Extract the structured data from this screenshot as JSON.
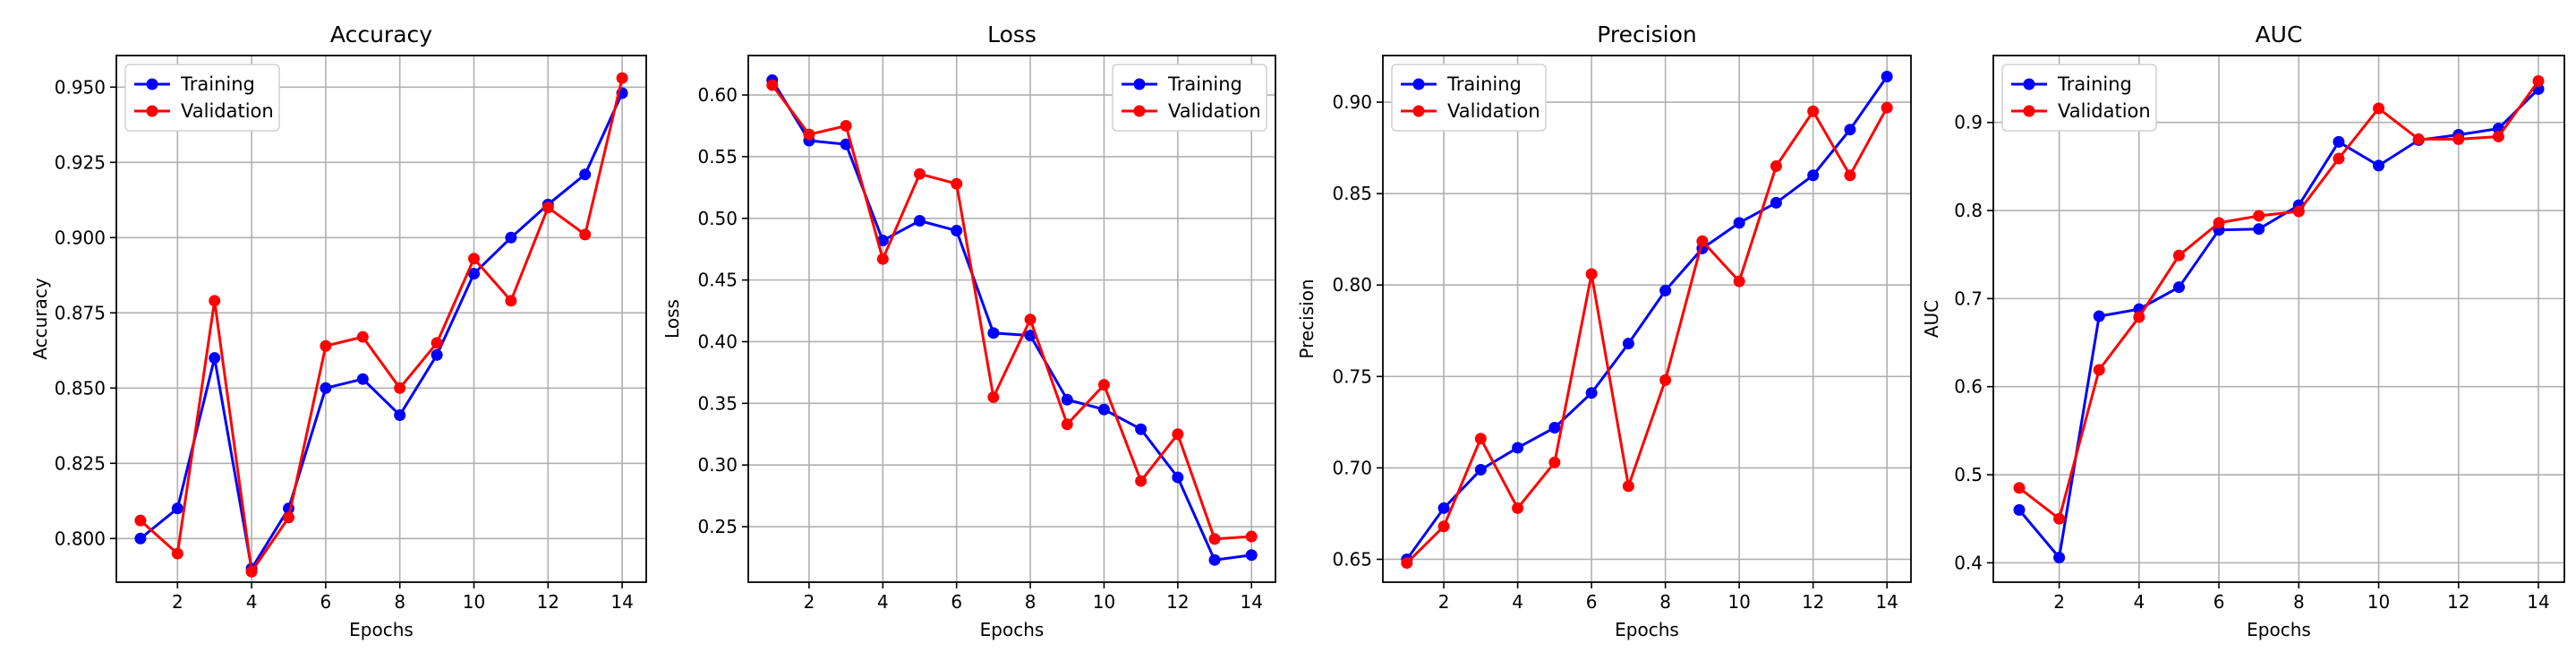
{
  "chart_data": [
    {
      "type": "line",
      "title": "Accuracy",
      "xlabel": "Epochs",
      "ylabel": "Accuracy",
      "x": [
        1,
        2,
        3,
        4,
        5,
        6,
        7,
        8,
        9,
        10,
        11,
        12,
        13,
        14
      ],
      "xlim": [
        0.35,
        14.65
      ],
      "ylim": [
        0.7855,
        0.9605
      ],
      "xticks": [
        2,
        4,
        6,
        8,
        10,
        12,
        14
      ],
      "yticks": [
        0.8,
        0.825,
        0.85,
        0.875,
        0.9,
        0.925,
        0.95
      ],
      "ytick_labels": [
        "0.800",
        "0.825",
        "0.850",
        "0.875",
        "0.900",
        "0.925",
        "0.950"
      ],
      "grid": true,
      "legend": "upper left",
      "series": [
        {
          "name": "Training",
          "color": "#0000ff",
          "values": [
            0.8,
            0.81,
            0.86,
            0.79,
            0.81,
            0.85,
            0.853,
            0.841,
            0.861,
            0.888,
            0.9,
            0.911,
            0.921,
            0.948
          ]
        },
        {
          "name": "Validation",
          "color": "#ff0000",
          "values": [
            0.806,
            0.795,
            0.879,
            0.789,
            0.807,
            0.864,
            0.867,
            0.85,
            0.865,
            0.893,
            0.879,
            0.91,
            0.901,
            0.953
          ]
        }
      ]
    },
    {
      "type": "line",
      "title": "Loss",
      "xlabel": "Epochs",
      "ylabel": "Loss",
      "x": [
        1,
        2,
        3,
        4,
        5,
        6,
        7,
        8,
        9,
        10,
        11,
        12,
        13,
        14
      ],
      "xlim": [
        0.35,
        14.65
      ],
      "ylim": [
        0.205,
        0.632
      ],
      "xticks": [
        2,
        4,
        6,
        8,
        10,
        12,
        14
      ],
      "yticks": [
        0.25,
        0.3,
        0.35,
        0.4,
        0.45,
        0.5,
        0.55,
        0.6
      ],
      "ytick_labels": [
        "0.25",
        "0.30",
        "0.35",
        "0.40",
        "0.45",
        "0.50",
        "0.55",
        "0.60"
      ],
      "grid": true,
      "legend": "upper right",
      "series": [
        {
          "name": "Training",
          "color": "#0000ff",
          "values": [
            0.612,
            0.563,
            0.56,
            0.482,
            0.498,
            0.49,
            0.407,
            0.405,
            0.353,
            0.345,
            0.329,
            0.29,
            0.223,
            0.227
          ]
        },
        {
          "name": "Validation",
          "color": "#ff0000",
          "values": [
            0.608,
            0.568,
            0.575,
            0.467,
            0.536,
            0.528,
            0.355,
            0.418,
            0.333,
            0.365,
            0.287,
            0.325,
            0.24,
            0.242
          ]
        }
      ]
    },
    {
      "type": "line",
      "title": "Precision",
      "xlabel": "Epochs",
      "ylabel": "Precision",
      "x": [
        1,
        2,
        3,
        4,
        5,
        6,
        7,
        8,
        9,
        10,
        11,
        12,
        13,
        14
      ],
      "xlim": [
        0.35,
        14.65
      ],
      "ylim": [
        0.6375,
        0.9255
      ],
      "xticks": [
        2,
        4,
        6,
        8,
        10,
        12,
        14
      ],
      "yticks": [
        0.65,
        0.7,
        0.75,
        0.8,
        0.85,
        0.9
      ],
      "ytick_labels": [
        "0.65",
        "0.70",
        "0.75",
        "0.80",
        "0.85",
        "0.90"
      ],
      "grid": true,
      "legend": "upper left",
      "series": [
        {
          "name": "Training",
          "color": "#0000ff",
          "values": [
            0.65,
            0.678,
            0.699,
            0.711,
            0.722,
            0.741,
            0.768,
            0.797,
            0.82,
            0.834,
            0.845,
            0.86,
            0.885,
            0.914
          ]
        },
        {
          "name": "Validation",
          "color": "#ff0000",
          "values": [
            0.648,
            0.668,
            0.716,
            0.678,
            0.703,
            0.806,
            0.69,
            0.748,
            0.824,
            0.802,
            0.865,
            0.895,
            0.86,
            0.897
          ]
        }
      ]
    },
    {
      "type": "line",
      "title": "AUC",
      "xlabel": "Epochs",
      "ylabel": "AUC",
      "x": [
        1,
        2,
        3,
        4,
        5,
        6,
        7,
        8,
        9,
        10,
        11,
        12,
        13,
        14
      ],
      "xlim": [
        0.35,
        14.65
      ],
      "ylim": [
        0.378,
        0.976
      ],
      "xticks": [
        2,
        4,
        6,
        8,
        10,
        12,
        14
      ],
      "yticks": [
        0.4,
        0.5,
        0.6,
        0.7,
        0.8,
        0.9
      ],
      "ytick_labels": [
        "0.4",
        "0.5",
        "0.6",
        "0.7",
        "0.8",
        "0.9"
      ],
      "grid": true,
      "legend": "upper left",
      "series": [
        {
          "name": "Training",
          "color": "#0000ff",
          "values": [
            0.46,
            0.406,
            0.68,
            0.688,
            0.713,
            0.778,
            0.779,
            0.806,
            0.878,
            0.851,
            0.88,
            0.886,
            0.893,
            0.938
          ]
        },
        {
          "name": "Validation",
          "color": "#ff0000",
          "values": [
            0.485,
            0.45,
            0.619,
            0.679,
            0.749,
            0.786,
            0.794,
            0.799,
            0.859,
            0.916,
            0.881,
            0.881,
            0.884,
            0.947
          ]
        }
      ]
    }
  ]
}
